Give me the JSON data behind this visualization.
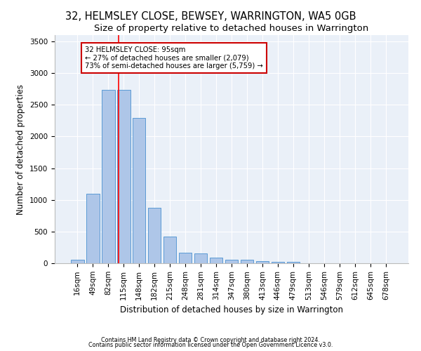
{
  "title1": "32, HELMSLEY CLOSE, BEWSEY, WARRINGTON, WA5 0GB",
  "title2": "Size of property relative to detached houses in Warrington",
  "xlabel": "Distribution of detached houses by size in Warrington",
  "ylabel": "Number of detached properties",
  "categories": [
    "16sqm",
    "49sqm",
    "82sqm",
    "115sqm",
    "148sqm",
    "182sqm",
    "215sqm",
    "248sqm",
    "281sqm",
    "314sqm",
    "347sqm",
    "380sqm",
    "413sqm",
    "446sqm",
    "479sqm",
    "513sqm",
    "546sqm",
    "579sqm",
    "612sqm",
    "645sqm",
    "678sqm"
  ],
  "values": [
    50,
    1100,
    2740,
    2740,
    2290,
    875,
    425,
    170,
    160,
    88,
    58,
    50,
    33,
    24,
    18,
    0,
    0,
    0,
    0,
    0,
    0
  ],
  "bar_color": "#aec6e8",
  "bar_edge_color": "#5b9bd5",
  "red_line_x": 2.67,
  "annotation_line1": "32 HELMSLEY CLOSE: 95sqm",
  "annotation_line2": "← 27% of detached houses are smaller (2,079)",
  "annotation_line3": "73% of semi-detached houses are larger (5,759) →",
  "annotation_box_color": "#ffffff",
  "annotation_border_color": "#cc0000",
  "footer1": "Contains HM Land Registry data © Crown copyright and database right 2024.",
  "footer2": "Contains public sector information licensed under the Open Government Licence v3.0.",
  "bg_color": "#eaf0f8",
  "ylim": [
    0,
    3600
  ],
  "yticks": [
    0,
    500,
    1000,
    1500,
    2000,
    2500,
    3000,
    3500
  ],
  "title1_fontsize": 10.5,
  "title2_fontsize": 9.5,
  "xlabel_fontsize": 8.5,
  "ylabel_fontsize": 8.5,
  "tick_fontsize": 7.5,
  "footer_fontsize": 5.8
}
